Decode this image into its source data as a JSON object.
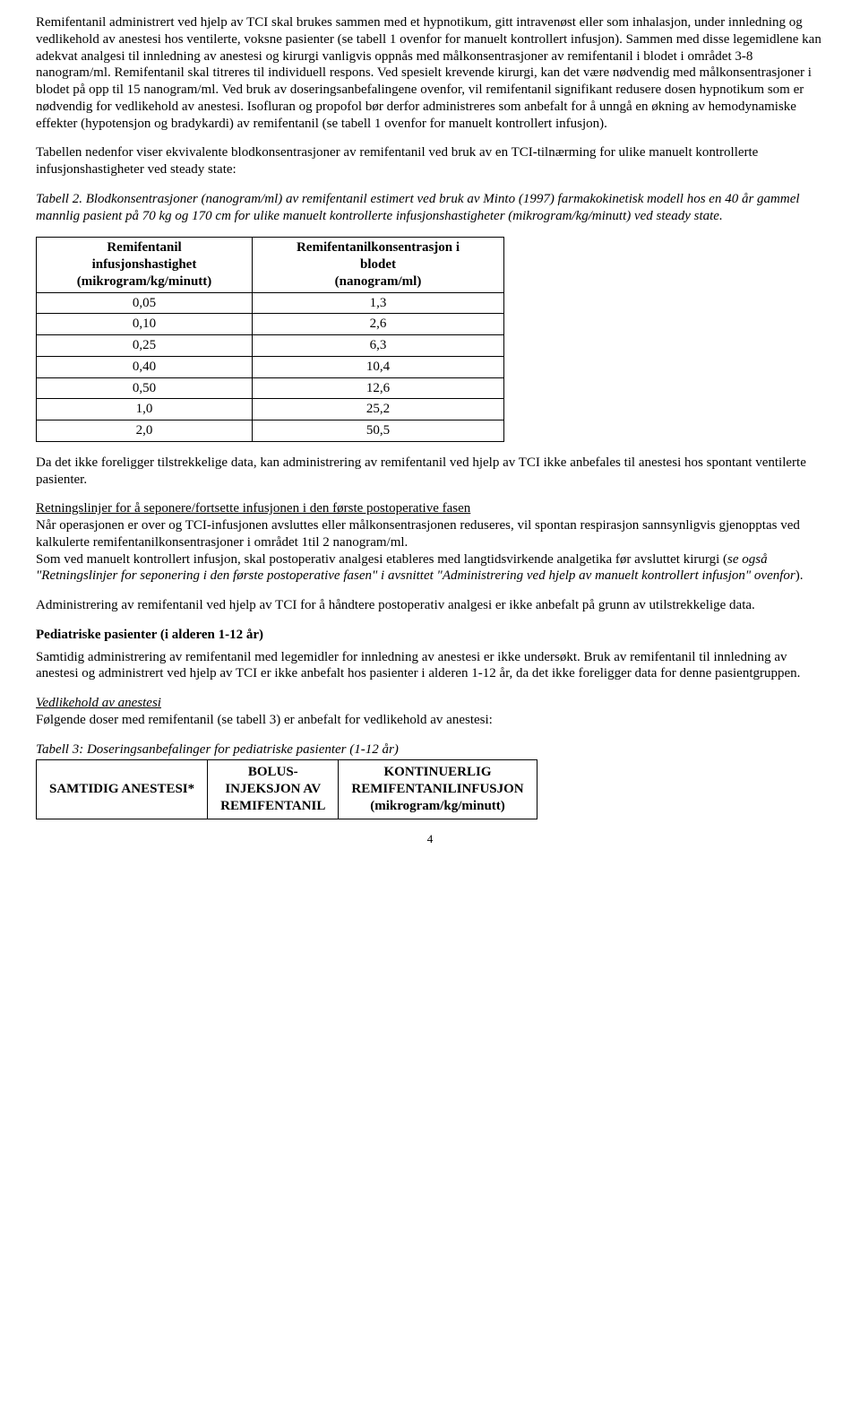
{
  "para1": "Remifentanil administrert ved hjelp av TCI skal brukes sammen med et hypnotikum, gitt intravenøst eller som inhalasjon, under innledning og vedlikehold av anestesi hos ventilerte, voksne pasienter (se tabell 1 ovenfor for manuelt kontrollert infusjon). Sammen med disse legemidlene kan adekvat analgesi til innledning av anestesi og kirurgi vanligvis oppnås med målkonsentrasjoner av remifentanil i blodet i området 3-8 nanogram/ml. Remifentanil skal titreres til individuell respons. Ved spesielt krevende kirurgi, kan det være nødvendig med målkonsentrasjoner i blodet på opp til 15 nanogram/ml. Ved bruk av doseringsanbefalingene ovenfor, vil remifentanil signifikant redusere dosen hypnotikum som er nødvendig for vedlikehold av anestesi. Isofluran og propofol bør derfor administreres som anbefalt for å unngå en økning av hemodynamiske effekter (hypotensjon og bradykardi) av remifentanil (se tabell 1 ovenfor for manuelt kontrollert infusjon).",
  "para2": "Tabellen nedenfor viser ekvivalente blodkonsentrasjoner av remifentanil ved bruk av en TCI-tilnærming for ulike manuelt kontrollerte infusjonshastigheter ved steady state:",
  "table2_caption": "Tabell 2. Blodkonsentrasjoner (nanogram/ml) av remifentanil estimert ved bruk av Minto (1997) farmakokinetisk modell hos en 40 år gammel mannlig pasient på 70 kg og 170 cm for ulike manuelt kontrollerte infusjonshastigheter (mikrogram/kg/minutt) ved steady state.",
  "table2": {
    "headers": {
      "c0a": "Remifentanil",
      "c0b": "infusjonshastighet",
      "c0c": "(mikrogram/kg/minutt)",
      "c1a": "Remifentanilkonsentrasjon i",
      "c1b": "blodet",
      "c1c": "(nanogram/ml)"
    },
    "rows": [
      [
        "0,05",
        "1,3"
      ],
      [
        "0,10",
        "2,6"
      ],
      [
        "0,25",
        "6,3"
      ],
      [
        "0,40",
        "10,4"
      ],
      [
        "0,50",
        "12,6"
      ],
      [
        "1,0",
        "25,2"
      ],
      [
        "2,0",
        "50,5"
      ]
    ]
  },
  "para3": "Da det ikke foreligger tilstrekkelige data, kan administrering av remifentanil ved hjelp av TCI ikke anbefales til anestesi hos spontant ventilerte pasienter.",
  "sec1_title": "Retningslinjer for å seponere/fortsette infusjonen i den første postoperative fasen",
  "sec1_p1": "Når operasjonen er over og TCI-infusjonen avsluttes eller målkonsentrasjonen reduseres, vil spontan respirasjon sannsynligvis gjenopptas ved kalkulerte remifentanilkonsentrasjoner i området 1til 2 nanogram/ml.",
  "sec1_p2a": "Som ved manuelt kontrollert infusjon, skal postoperativ analgesi etableres med langtidsvirkende analgetika før avsluttet kirurgi (",
  "sec1_p2b": "se også \"Retningslinjer for seponering i den første postoperative fasen\" i avsnittet \"Administrering ved hjelp av manuelt kontrollert infusjon\" ovenfor",
  "sec1_p2c": ").",
  "para4": "Administrering av remifentanil ved hjelp av TCI for å håndtere postoperativ analgesi er ikke anbefalt på grunn av utilstrekkelige data.",
  "ped_heading": "Pediatriske pasienter (i alderen 1-12 år)",
  "ped_p1": "Samtidig administrering av remifentanil med legemidler for innledning av anestesi er ikke undersøkt. Bruk av remifentanil til innledning av anestesi og administrert ved hjelp av TCI er ikke anbefalt hos pasienter i alderen 1-12 år, da det ikke foreligger data for denne pasientgruppen.",
  "vedlikehold_title": "Vedlikehold av anestesi",
  "vedlikehold_p": "Følgende doser med remifentanil (se tabell 3) er anbefalt for vedlikehold av anestesi:",
  "table3_caption": "Tabell 3: Doseringsanbefalinger for pediatriske pasienter (1-12 år)",
  "table3": {
    "headers": {
      "c0": "SAMTIDIG ANESTESI*",
      "c1a": "BOLUS-",
      "c1b": "INJEKSJON AV",
      "c1c": "REMIFENTANIL",
      "c2a": "KONTINUERLIG",
      "c2b": "REMIFENTANILINFUSJON",
      "c2c": "(mikrogram/kg/minutt)"
    }
  },
  "page_number": "4"
}
